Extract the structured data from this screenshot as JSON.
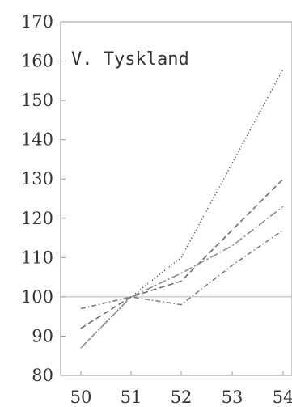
{
  "chart_data": {
    "type": "line",
    "title": "V. Tyskland",
    "xlabel": "",
    "ylabel": "",
    "x": [
      50,
      51,
      52,
      53,
      54
    ],
    "x_tick_labels": [
      "50",
      "51",
      "52",
      "53",
      "54"
    ],
    "ylim": [
      80,
      170
    ],
    "y_ticks": [
      80,
      90,
      100,
      110,
      120,
      130,
      140,
      150,
      160,
      170
    ],
    "y_tick_labels": [
      "80",
      "90",
      "100",
      "110",
      "120",
      "130",
      "140",
      "150",
      "160",
      "170"
    ],
    "reference_line": 100,
    "grid": false,
    "series": [
      {
        "x": [
          50,
          51,
          52,
          53,
          54
        ],
        "values": [
          87,
          100,
          110,
          134,
          158
        ],
        "style": "dotted",
        "color": "#555555"
      },
      {
        "x": [
          50,
          51,
          52,
          53,
          54
        ],
        "values": [
          92,
          100,
          104,
          117,
          130
        ],
        "style": "dashed",
        "color": "#666666"
      },
      {
        "x": [
          50,
          51,
          52,
          53,
          54
        ],
        "values": [
          87,
          100,
          106,
          113,
          123
        ],
        "style": "dash-dot-long",
        "color": "#888888"
      },
      {
        "x": [
          50,
          51,
          52,
          53,
          54
        ],
        "values": [
          97,
          100,
          98,
          108,
          117
        ],
        "style": "dash-dot",
        "color": "#777777"
      }
    ]
  }
}
